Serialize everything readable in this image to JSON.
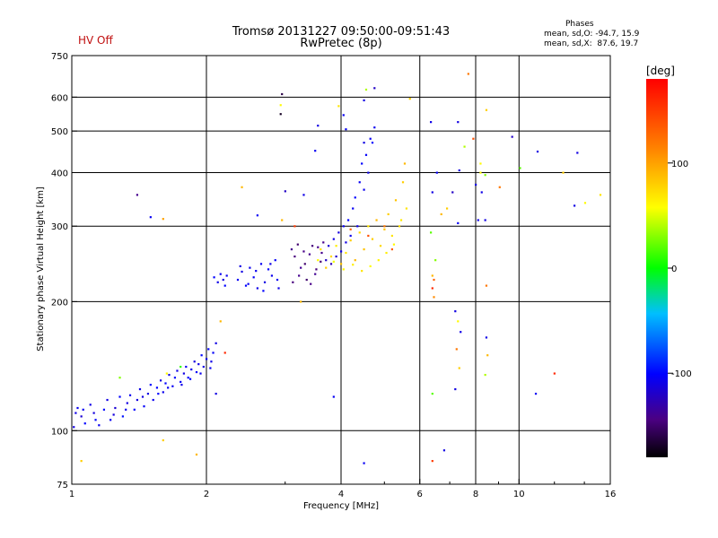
{
  "header": {
    "title_line1": "Tromsø 20131227 09:50:00-09:51:43",
    "title_line2": "RwPretec (8p)",
    "status": "HV Off"
  },
  "phase_stats": {
    "title": "Phases",
    "line_o": "mean, sd,O: -94.7, 15.9",
    "line_x": "mean, sd,X:  87.6, 19.7"
  },
  "colorbar": {
    "label": "[deg]",
    "ticks": [
      {
        "value": 100,
        "label": "100"
      },
      {
        "value": 0,
        "label": "0"
      },
      {
        "value": -100,
        "label": "-100"
      }
    ],
    "range": [
      -180,
      180
    ]
  },
  "chart_data": {
    "type": "scatter",
    "xlabel": "Frequency [MHz]",
    "ylabel": "Stationary phase Virtual Height [km]",
    "xscale": "log",
    "yscale": "log",
    "xlim": [
      1,
      16
    ],
    "ylim": [
      75,
      750
    ],
    "grid": true,
    "x_ticks": [
      {
        "v": 1,
        "label": "1"
      },
      {
        "v": 2,
        "label": "2"
      },
      {
        "v": 4,
        "label": "4"
      },
      {
        "v": 6,
        "label": "6"
      },
      {
        "v": 8,
        "label": "8"
      },
      {
        "v": 10,
        "label": "10"
      },
      {
        "v": 16,
        "label": "16"
      }
    ],
    "x_major_grid": [
      2,
      4,
      6,
      8,
      10
    ],
    "y_ticks": [
      {
        "v": 75,
        "label": "75"
      },
      {
        "v": 100,
        "label": "100"
      },
      {
        "v": 200,
        "label": "200"
      },
      {
        "v": 300,
        "label": "300"
      },
      {
        "v": 400,
        "label": "400"
      },
      {
        "v": 500,
        "label": "500"
      },
      {
        "v": 600,
        "label": "600"
      },
      {
        "v": 750,
        "label": "750"
      }
    ],
    "y_major_grid": [
      100,
      200,
      300,
      400,
      500,
      600
    ],
    "points": [
      [
        1.01,
        102,
        -110
      ],
      [
        1.03,
        113,
        -105
      ],
      [
        1.05,
        108,
        -115
      ],
      [
        1.07,
        104,
        -100
      ],
      [
        1.1,
        115,
        -108
      ],
      [
        1.12,
        110,
        -112
      ],
      [
        1.15,
        103,
        -105
      ],
      [
        1.18,
        112,
        -98
      ],
      [
        1.2,
        118,
        -110
      ],
      [
        1.22,
        106,
        -104
      ],
      [
        1.25,
        113,
        -115
      ],
      [
        1.28,
        120,
        -100
      ],
      [
        1.3,
        108,
        -95
      ],
      [
        1.33,
        116,
        -110
      ],
      [
        1.35,
        121,
        -105
      ],
      [
        1.38,
        112,
        -100
      ],
      [
        1.4,
        118,
        -112
      ],
      [
        1.42,
        125,
        -108
      ],
      [
        1.45,
        114,
        -102
      ],
      [
        1.48,
        122,
        -110
      ],
      [
        1.5,
        128,
        -98
      ],
      [
        1.52,
        118,
        -105
      ],
      [
        1.55,
        126,
        -100
      ],
      [
        1.58,
        131,
        -112
      ],
      [
        1.6,
        123,
        -106
      ],
      [
        1.62,
        129,
        -100
      ],
      [
        1.65,
        135,
        -110
      ],
      [
        1.68,
        127,
        -104
      ],
      [
        1.7,
        133,
        -98
      ],
      [
        1.72,
        138,
        -108
      ],
      [
        1.75,
        130,
        -102
      ],
      [
        1.78,
        136,
        -110
      ],
      [
        1.8,
        141,
        -104
      ],
      [
        1.82,
        133,
        -100
      ],
      [
        1.85,
        139,
        -106
      ],
      [
        1.88,
        145,
        -112
      ],
      [
        1.9,
        137,
        -102
      ],
      [
        1.92,
        143,
        -108
      ],
      [
        1.95,
        150,
        -98
      ],
      [
        1.97,
        141,
        -110
      ],
      [
        2.0,
        147,
        -104
      ],
      [
        2.02,
        155,
        -100
      ],
      [
        2.05,
        145,
        -108
      ],
      [
        2.07,
        152,
        -102
      ],
      [
        2.1,
        160,
        -110
      ],
      [
        1.02,
        110,
        -108
      ],
      [
        1.06,
        112,
        -104
      ],
      [
        1.13,
        106,
        -100
      ],
      [
        1.24,
        109,
        -112
      ],
      [
        1.32,
        112,
        -106
      ],
      [
        1.44,
        120,
        -110
      ],
      [
        1.56,
        122,
        -100
      ],
      [
        1.64,
        126,
        -104
      ],
      [
        1.76,
        128,
        -108
      ],
      [
        1.84,
        132,
        -100
      ],
      [
        1.94,
        136,
        -106
      ],
      [
        2.04,
        140,
        -104
      ],
      [
        2.08,
        228,
        -100
      ],
      [
        2.12,
        222,
        -108
      ],
      [
        2.15,
        232,
        -104
      ],
      [
        2.18,
        225,
        -112
      ],
      [
        2.2,
        218,
        -100
      ],
      [
        2.22,
        230,
        -106
      ],
      [
        2.35,
        225,
        -104
      ],
      [
        2.4,
        235,
        -110
      ],
      [
        2.45,
        218,
        -100
      ],
      [
        2.5,
        240,
        -106
      ],
      [
        2.55,
        228,
        -102
      ],
      [
        2.6,
        215,
        -108
      ],
      [
        2.65,
        245,
        -104
      ],
      [
        2.7,
        222,
        -110
      ],
      [
        2.75,
        238,
        -100
      ],
      [
        2.8,
        230,
        -106
      ],
      [
        2.85,
        250,
        -102
      ],
      [
        2.9,
        215,
        -108
      ],
      [
        2.38,
        242,
        -110
      ],
      [
        2.48,
        220,
        -104
      ],
      [
        2.58,
        236,
        -106
      ],
      [
        2.68,
        212,
        -100
      ],
      [
        2.78,
        245,
        -108
      ],
      [
        2.88,
        225,
        -104
      ],
      [
        3.1,
        265,
        -140
      ],
      [
        3.15,
        255,
        -145
      ],
      [
        3.2,
        272,
        -150
      ],
      [
        3.25,
        240,
        -138
      ],
      [
        3.3,
        262,
        -142
      ],
      [
        3.35,
        225,
        -150
      ],
      [
        3.4,
        258,
        -140
      ],
      [
        3.45,
        270,
        -146
      ],
      [
        3.5,
        232,
        -138
      ],
      [
        3.55,
        268,
        -142
      ],
      [
        3.6,
        248,
        -148
      ],
      [
        3.65,
        275,
        -140
      ],
      [
        3.12,
        222,
        -145
      ],
      [
        3.22,
        230,
        -140
      ],
      [
        3.32,
        245,
        -150
      ],
      [
        3.42,
        220,
        -142
      ],
      [
        3.52,
        238,
        -146
      ],
      [
        3.62,
        260,
        -140
      ],
      [
        3.7,
        250,
        -120
      ],
      [
        3.75,
        270,
        -115
      ],
      [
        3.8,
        245,
        -125
      ],
      [
        3.85,
        280,
        -110
      ],
      [
        3.9,
        255,
        -118
      ],
      [
        3.95,
        290,
        -112
      ],
      [
        4.0,
        262,
        -108
      ],
      [
        4.05,
        300,
        -104
      ],
      [
        4.1,
        275,
        -110
      ],
      [
        4.15,
        310,
        -100
      ],
      [
        4.2,
        285,
        -106
      ],
      [
        4.25,
        330,
        -104
      ],
      [
        4.3,
        350,
        -100
      ],
      [
        4.35,
        300,
        -108
      ],
      [
        4.4,
        380,
        -104
      ],
      [
        4.45,
        420,
        -100
      ],
      [
        4.5,
        365,
        -106
      ],
      [
        4.55,
        440,
        -102
      ],
      [
        4.6,
        400,
        -108
      ],
      [
        4.65,
        480,
        -104
      ],
      [
        4.7,
        470,
        -100
      ],
      [
        4.75,
        510,
        -106
      ],
      [
        3.55,
        250,
        60
      ],
      [
        3.6,
        265,
        70
      ],
      [
        3.7,
        240,
        80
      ],
      [
        3.8,
        255,
        75
      ],
      [
        3.9,
        270,
        65
      ],
      [
        4.0,
        245,
        85
      ],
      [
        4.1,
        260,
        70
      ],
      [
        4.2,
        278,
        80
      ],
      [
        4.3,
        250,
        90
      ],
      [
        4.4,
        290,
        75
      ],
      [
        4.5,
        265,
        85
      ],
      [
        4.6,
        300,
        70
      ],
      [
        4.7,
        280,
        80
      ],
      [
        4.8,
        310,
        90
      ],
      [
        4.9,
        270,
        75
      ],
      [
        5.0,
        295,
        85
      ],
      [
        5.1,
        320,
        80
      ],
      [
        5.2,
        285,
        70
      ],
      [
        5.3,
        345,
        85
      ],
      [
        5.4,
        300,
        75
      ],
      [
        5.5,
        380,
        80
      ],
      [
        5.55,
        420,
        90
      ],
      [
        5.6,
        330,
        70
      ],
      [
        3.85,
        248,
        55
      ],
      [
        4.05,
        238,
        60
      ],
      [
        4.25,
        244,
        65
      ],
      [
        4.45,
        236,
        70
      ],
      [
        4.65,
        242,
        58
      ],
      [
        4.85,
        250,
        62
      ],
      [
        5.05,
        260,
        66
      ],
      [
        5.25,
        272,
        60
      ],
      [
        5.45,
        310,
        68
      ],
      [
        4.2,
        295,
        130
      ],
      [
        4.6,
        285,
        140
      ],
      [
        5.0,
        300,
        120
      ],
      [
        5.2,
        265,
        135
      ],
      [
        2.95,
        610,
        -160
      ],
      [
        2.93,
        548,
        -170
      ],
      [
        2.93,
        575,
        60
      ],
      [
        4.55,
        625,
        40
      ],
      [
        4.75,
        630,
        -120
      ],
      [
        4.5,
        590,
        -110
      ],
      [
        3.55,
        515,
        -110
      ],
      [
        3.95,
        572,
        70
      ],
      [
        4.1,
        505,
        -104
      ],
      [
        5.7,
        595,
        80
      ],
      [
        7.7,
        680,
        120
      ],
      [
        6.35,
        525,
        -108
      ],
      [
        7.3,
        525,
        -110
      ],
      [
        8.45,
        560,
        80
      ],
      [
        9.65,
        485,
        -120
      ],
      [
        7.9,
        480,
        140
      ],
      [
        7.55,
        460,
        40
      ],
      [
        7.35,
        405,
        -110
      ],
      [
        8.2,
        420,
        60
      ],
      [
        8.4,
        395,
        30
      ],
      [
        8.0,
        375,
        -110
      ],
      [
        8.25,
        360,
        -108
      ],
      [
        9.05,
        370,
        120
      ],
      [
        10.05,
        410,
        20
      ],
      [
        11.0,
        448,
        -110
      ],
      [
        12.55,
        400,
        80
      ],
      [
        13.3,
        335,
        -110
      ],
      [
        14.05,
        340,
        60
      ],
      [
        13.5,
        445,
        -110
      ],
      [
        15.2,
        355,
        70
      ],
      [
        1.4,
        355,
        -140
      ],
      [
        1.5,
        315,
        -104
      ],
      [
        1.6,
        312,
        100
      ],
      [
        2.4,
        370,
        90
      ],
      [
        2.6,
        318,
        -104
      ],
      [
        2.95,
        310,
        90
      ],
      [
        3.0,
        362,
        -120
      ],
      [
        3.3,
        355,
        -108
      ],
      [
        3.15,
        300,
        150
      ],
      [
        3.5,
        450,
        -104
      ],
      [
        4.05,
        545,
        -104
      ],
      [
        4.5,
        470,
        -110
      ],
      [
        6.4,
        360,
        -110
      ],
      [
        6.55,
        400,
        -104
      ],
      [
        6.7,
        320,
        90
      ],
      [
        6.9,
        330,
        80
      ],
      [
        7.1,
        360,
        -120
      ],
      [
        7.3,
        305,
        -104
      ],
      [
        8.1,
        310,
        -108
      ],
      [
        8.4,
        310,
        -110
      ],
      [
        8.2,
        400,
        60
      ],
      [
        6.35,
        290,
        20
      ],
      [
        6.5,
        250,
        30
      ],
      [
        6.4,
        230,
        90
      ],
      [
        6.45,
        225,
        130
      ],
      [
        6.4,
        215,
        160
      ],
      [
        6.45,
        205,
        110
      ],
      [
        7.2,
        190,
        -110
      ],
      [
        7.3,
        180,
        60
      ],
      [
        7.4,
        170,
        -108
      ],
      [
        7.25,
        155,
        120
      ],
      [
        7.35,
        140,
        80
      ],
      [
        7.2,
        125,
        -110
      ],
      [
        8.45,
        165,
        -108
      ],
      [
        8.5,
        150,
        90
      ],
      [
        8.4,
        135,
        40
      ],
      [
        8.45,
        218,
        120
      ],
      [
        10.9,
        122,
        -104
      ],
      [
        12.0,
        136,
        160
      ],
      [
        6.4,
        122,
        20
      ],
      [
        6.4,
        85,
        150
      ],
      [
        6.8,
        90,
        -110
      ],
      [
        4.5,
        84,
        -104
      ],
      [
        3.85,
        120,
        -104
      ],
      [
        2.1,
        122,
        -110
      ],
      [
        2.15,
        180,
        90
      ],
      [
        1.63,
        136,
        60
      ],
      [
        1.75,
        141,
        10
      ],
      [
        1.6,
        95,
        80
      ],
      [
        1.9,
        88,
        90
      ],
      [
        1.05,
        85,
        80
      ],
      [
        1.28,
        133,
        30
      ],
      [
        2.2,
        152,
        160
      ],
      [
        3.25,
        200,
        90
      ]
    ]
  }
}
